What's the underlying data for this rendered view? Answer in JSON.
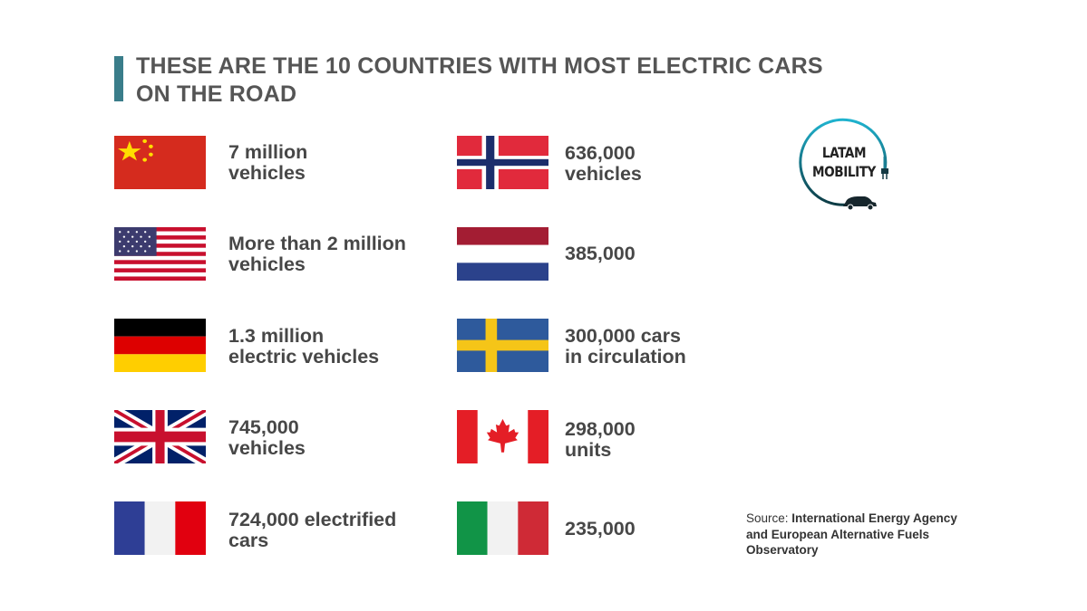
{
  "title": {
    "line1": "THESE ARE THE 10 COUNTRIES WITH MOST ELECTRIC CARS",
    "line2": "ON THE ROAD"
  },
  "countries": [
    {
      "flag": "china-flag",
      "line1": "7 million",
      "line2": "vehicles"
    },
    {
      "flag": "usa-flag",
      "line1": "More than 2 million",
      "line2": "vehicles"
    },
    {
      "flag": "germany-flag",
      "line1": "1.3 million",
      "line2": "electric vehicles"
    },
    {
      "flag": "uk-flag",
      "line1": "745,000",
      "line2": "vehicles"
    },
    {
      "flag": "france-flag",
      "line1": "724,000 electrified",
      "line2": "cars"
    },
    {
      "flag": "norway-flag",
      "line1": "636,000",
      "line2": "vehicles"
    },
    {
      "flag": "netherlands-flag",
      "line1": "385,000",
      "line2": ""
    },
    {
      "flag": "sweden-flag",
      "line1": "300,000 cars",
      "line2": "in circulation"
    },
    {
      "flag": "canada-flag",
      "line1": "298,000",
      "line2": "units"
    },
    {
      "flag": "italy-flag",
      "line1": "235,000",
      "line2": ""
    }
  ],
  "logo": {
    "line1": "LATAM",
    "line2": "MOBILITY"
  },
  "source": {
    "label": "Source: ",
    "text": "International Energy Agency and European Alternative Fuels Observatory"
  },
  "colors": {
    "accent_bar": "#3a7d8a",
    "text": "#474747"
  }
}
